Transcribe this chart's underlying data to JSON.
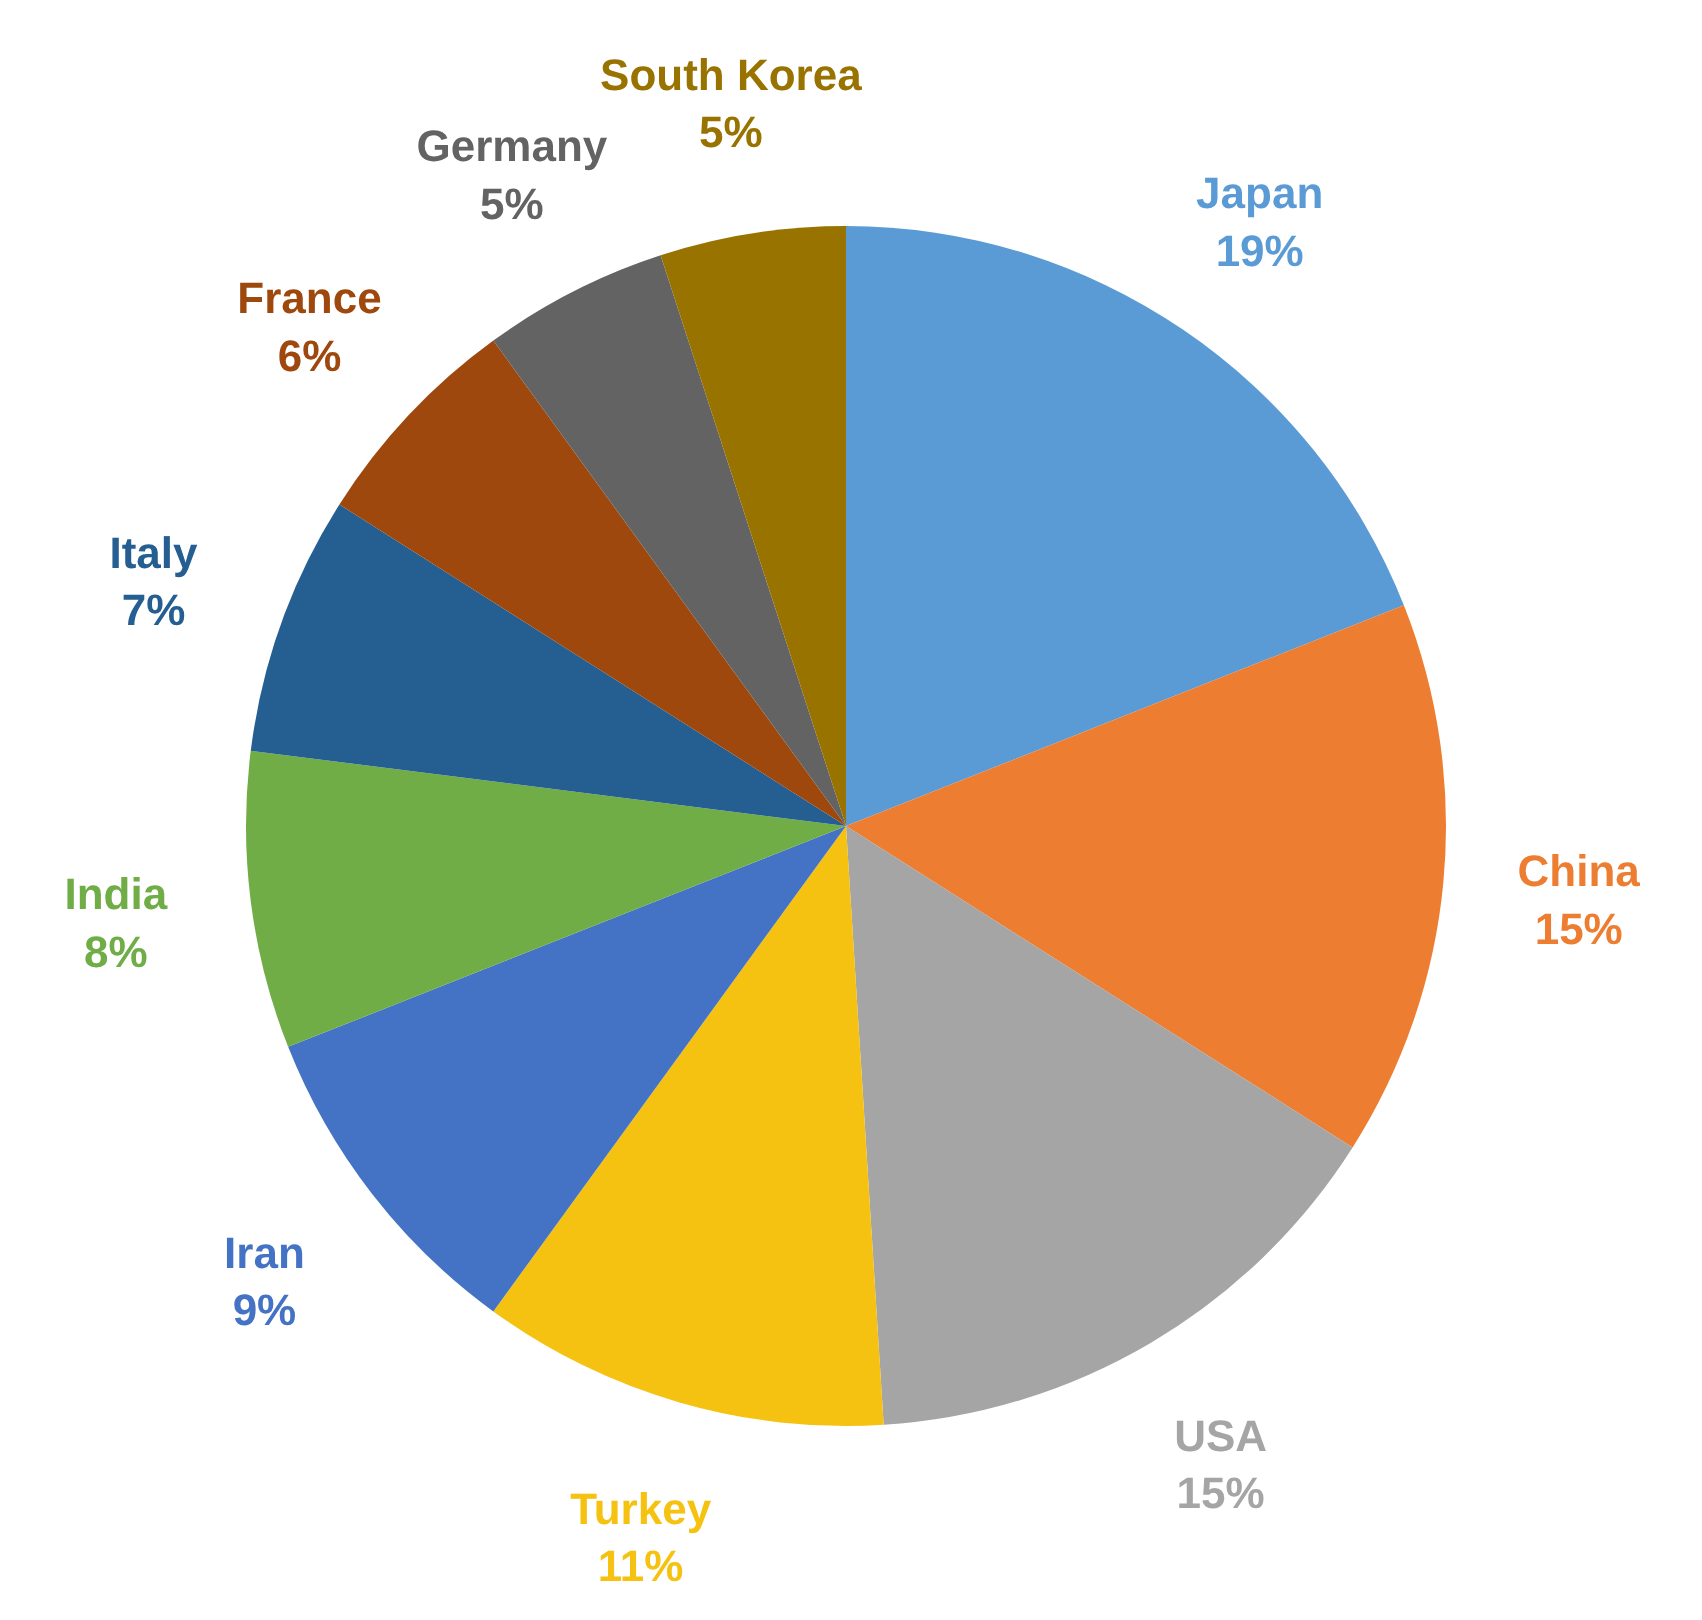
{
  "chart_data": {
    "type": "pie",
    "categories": [
      "Japan",
      "China",
      "USA",
      "Turkey",
      "Iran",
      "India",
      "Italy",
      "France",
      "Germany",
      "South Korea"
    ],
    "values": [
      19,
      15,
      15,
      11,
      9,
      8,
      7,
      6,
      5,
      5
    ],
    "value_labels": [
      "19%",
      "15%",
      "15%",
      "11%",
      "9%",
      "8%",
      "7%",
      "6%",
      "5%",
      "5%"
    ],
    "colors": [
      "#5b9bd5",
      "#ed7d31",
      "#a5a5a5",
      "#f5c211",
      "#4472c4",
      "#70ad47",
      "#255e91",
      "#9e480e",
      "#636363",
      "#997300"
    ],
    "legend": false
  }
}
